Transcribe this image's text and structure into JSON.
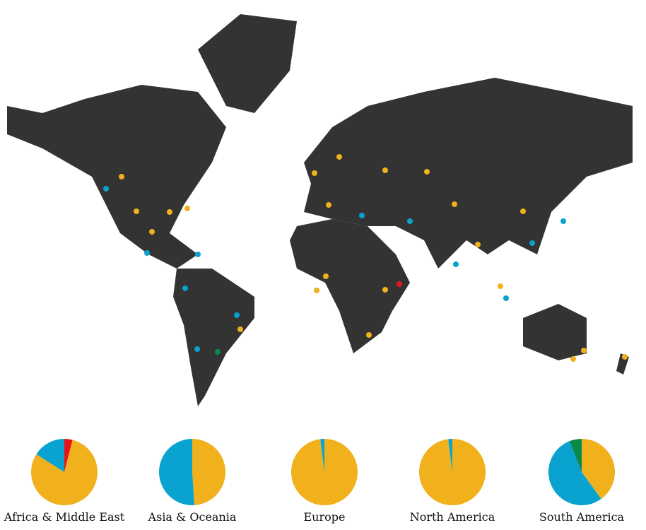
{
  "chart_data": [
    {
      "type": "pie",
      "title": "Africa & Middle East",
      "values": [
        4,
        80,
        16
      ],
      "colors": [
        "#e8141c",
        "#f0b11d",
        "#0aa3d0"
      ]
    },
    {
      "type": "pie",
      "title": "Asia & Oceania",
      "values": [
        49,
        51
      ],
      "colors": [
        "#f0b11d",
        "#0aa3d0"
      ]
    },
    {
      "type": "pie",
      "title": "Europe",
      "values": [
        98,
        2
      ],
      "colors": [
        "#f0b11d",
        "#0aa3d0"
      ]
    },
    {
      "type": "pie",
      "title": "North America",
      "values": [
        98,
        2
      ],
      "colors": [
        "#f0b11d",
        "#0aa3d0"
      ]
    },
    {
      "type": "pie",
      "title": "South America",
      "values": [
        40,
        54,
        6
      ],
      "colors": [
        "#f0b11d",
        "#0aa3d0",
        "#0a8a4a"
      ]
    }
  ]
}
